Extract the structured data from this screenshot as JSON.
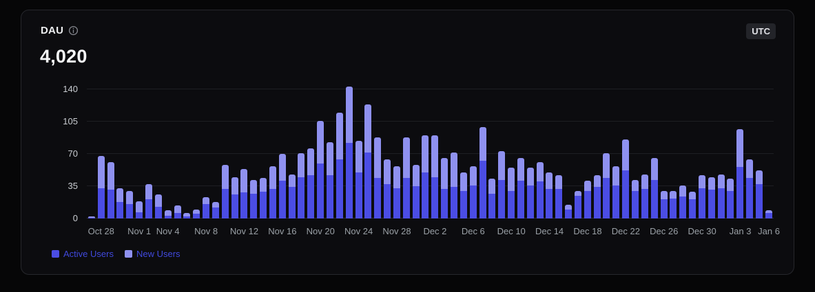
{
  "card": {
    "title": "DAU",
    "value": "4,020",
    "timezone_badge": "UTC"
  },
  "legend": [
    {
      "label": "Active Users",
      "color": "#4b4de4"
    },
    {
      "label": "New Users",
      "color": "#8f91f0"
    }
  ],
  "colors": {
    "card_background": "#0c0c0f",
    "page_background": "#060607",
    "active_bar": "#4b4de4",
    "new_bar": "#8f91f0",
    "legend_text": "#4049dd"
  },
  "chart_data": {
    "type": "bar",
    "stacked": true,
    "title": "DAU",
    "headline_value": "4,020",
    "grid": "horizontal",
    "legend_position": "bottom-left",
    "n_bars": 72,
    "ylim": [
      0,
      150
    ],
    "yticks": [
      0,
      35,
      70,
      105,
      140
    ],
    "series": [
      {
        "name": "Active Users",
        "color": "#4b4de4",
        "values": [
          1,
          33,
          31,
          18,
          16,
          7,
          21,
          13,
          3,
          6,
          2,
          5,
          16,
          12,
          32,
          26,
          28,
          27,
          29,
          32,
          41,
          34,
          45,
          47,
          60,
          47,
          64,
          82,
          50,
          72,
          44,
          37,
          33,
          44,
          35,
          50,
          45,
          32,
          34,
          30,
          36,
          63,
          27,
          42,
          30,
          41,
          36,
          40,
          32,
          32,
          10,
          25,
          30,
          34,
          44,
          36,
          52,
          30,
          32,
          42,
          21,
          22,
          24,
          21,
          33,
          31,
          33,
          30,
          56,
          44,
          37,
          6
        ]
      },
      {
        "name": "New Users",
        "color": "#8f91f0",
        "values": [
          1,
          35,
          30,
          15,
          14,
          12,
          16,
          13,
          6,
          8,
          4,
          5,
          7,
          6,
          26,
          19,
          26,
          15,
          15,
          25,
          29,
          14,
          26,
          29,
          46,
          36,
          51,
          61,
          34,
          52,
          44,
          27,
          24,
          44,
          23,
          40,
          45,
          34,
          38,
          20,
          21,
          36,
          16,
          31,
          25,
          25,
          19,
          21,
          18,
          15,
          5,
          5,
          11,
          13,
          27,
          21,
          34,
          12,
          16,
          24,
          9,
          8,
          12,
          8,
          14,
          14,
          15,
          13,
          41,
          20,
          15,
          3
        ]
      }
    ],
    "xticks": [
      {
        "index": 1,
        "label": "Oct 28"
      },
      {
        "index": 5,
        "label": "Nov 1"
      },
      {
        "index": 8,
        "label": "Nov 4"
      },
      {
        "index": 12,
        "label": "Nov 8"
      },
      {
        "index": 16,
        "label": "Nov 12"
      },
      {
        "index": 20,
        "label": "Nov 16"
      },
      {
        "index": 24,
        "label": "Nov 20"
      },
      {
        "index": 28,
        "label": "Nov 24"
      },
      {
        "index": 32,
        "label": "Nov 28"
      },
      {
        "index": 36,
        "label": "Dec 2"
      },
      {
        "index": 40,
        "label": "Dec 6"
      },
      {
        "index": 44,
        "label": "Dec 10"
      },
      {
        "index": 48,
        "label": "Dec 14"
      },
      {
        "index": 52,
        "label": "Dec 18"
      },
      {
        "index": 56,
        "label": "Dec 22"
      },
      {
        "index": 60,
        "label": "Dec 26"
      },
      {
        "index": 64,
        "label": "Dec 30"
      },
      {
        "index": 68,
        "label": "Jan 3"
      },
      {
        "index": 71,
        "label": "Jan 6"
      }
    ]
  }
}
